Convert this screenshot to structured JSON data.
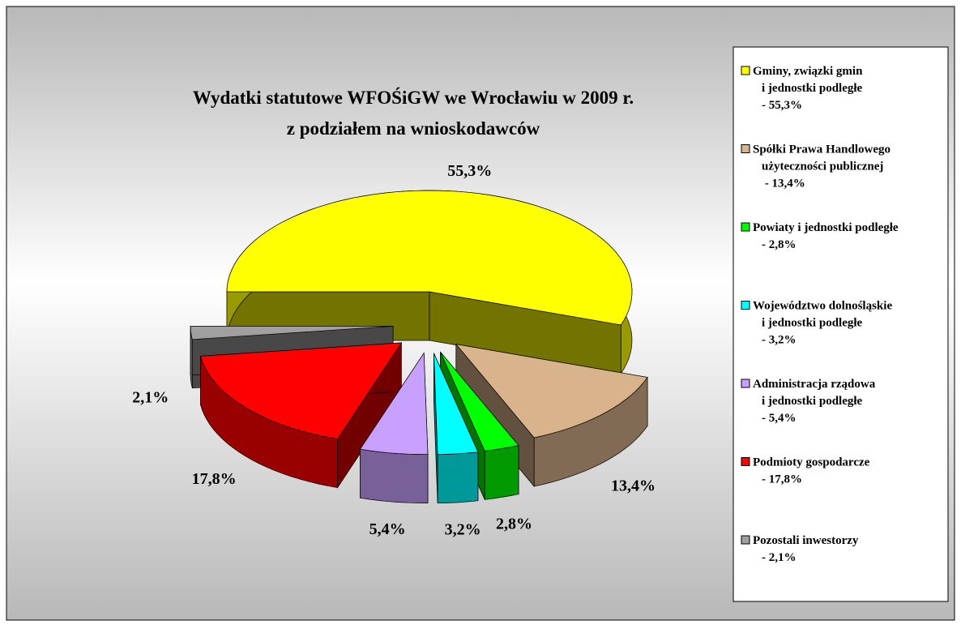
{
  "chart_data": {
    "type": "pie3d",
    "title": "Wydatki statutowe WFOŚiGW we Wrocławiu w 2009 r.\nz podziałem na wnioskodawców",
    "categories": [
      "Gminy, związki gmin\ni jednostki podległe\n- 55,3%",
      "Spółki Prawa Handlowego\nużyteczności publicznej\n - 13,4%",
      "Powiaty i jednostki podległe\n- 2,8%",
      "Województwo dolnośląskie\ni jednostki  podległe\n- 3,2%",
      "Administracja rządowa\ni jednostki podległe\n- 5,4%",
      "Podmioty gospodarcze\n- 17,8%",
      "Pozostali inwestorzy\n- 2,1%"
    ],
    "values": [
      55.3,
      13.4,
      2.8,
      3.2,
      5.4,
      17.8,
      2.1
    ],
    "value_labels": [
      "55,3%",
      "13,4%",
      "2,8%",
      "3,2%",
      "5,4%",
      "17,8%",
      "2,1%"
    ],
    "colors": [
      "#ffff00",
      "#d9b38c",
      "#00ff00",
      "#00ffff",
      "#c8a0ff",
      "#ff0000",
      "#a0a0a0"
    ],
    "legend": "right"
  }
}
